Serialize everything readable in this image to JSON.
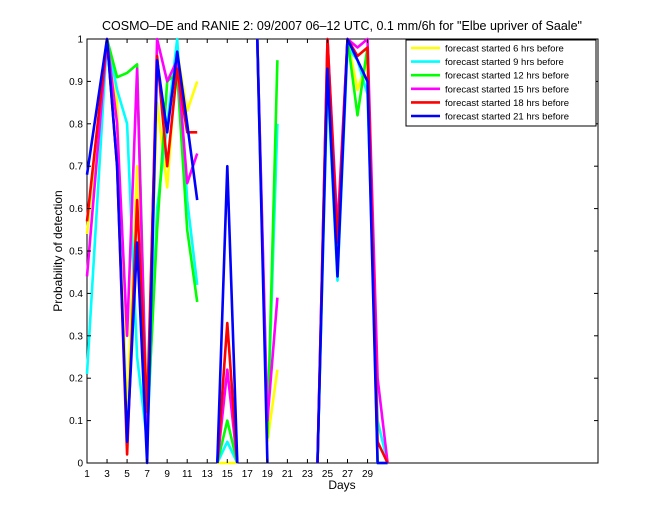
{
  "chart_data": {
    "type": "line",
    "title": "COSMO–DE and RANIE 2: 09/2007 06–12 UTC, 0.1 mm/6h for \"Elbe upriver of Saale\"",
    "xlabel": "Days",
    "ylabel": "Probability of detection",
    "xlim": [
      1,
      52
    ],
    "ylim": [
      0,
      1
    ],
    "x_ticks": [
      1,
      3,
      5,
      7,
      9,
      11,
      13,
      15,
      17,
      19,
      21,
      23,
      25,
      27,
      29
    ],
    "y_ticks": [
      0,
      0.1,
      0.2,
      0.3,
      0.4,
      0.5,
      0.6,
      0.7,
      0.8,
      0.9,
      1
    ],
    "grid": false,
    "legend_position": "top-right",
    "series": [
      {
        "name": "forecast started 6 hrs before",
        "color": "#ffff00",
        "points": [
          [
            1,
            0.54
          ],
          [
            3,
            1.0
          ],
          [
            4,
            0.85
          ],
          [
            5,
            0.1
          ],
          [
            6,
            0.7
          ],
          [
            7,
            0.1
          ],
          [
            8,
            0.85
          ],
          [
            9,
            0.65
          ],
          [
            10,
            0.97
          ],
          [
            11,
            0.83
          ],
          [
            12,
            0.9
          ],
          null,
          [
            14,
            0.0
          ],
          [
            15,
            0.0
          ],
          [
            16,
            0.0
          ],
          null,
          [
            18,
            0.98
          ],
          [
            19,
            0.05
          ],
          [
            20,
            0.22
          ],
          null,
          [
            24,
            0.0
          ],
          [
            25,
            0.95
          ],
          [
            26,
            0.5
          ],
          [
            27,
            1.0
          ],
          [
            28,
            0.88
          ],
          [
            29,
            0.95
          ],
          [
            30,
            0.0
          ],
          [
            31,
            0.0
          ]
        ]
      },
      {
        "name": "forecast started 9 hrs before",
        "color": "#00ffff",
        "points": [
          [
            1,
            0.21
          ],
          [
            3,
            1.0
          ],
          [
            4,
            0.88
          ],
          [
            5,
            0.8
          ],
          [
            6,
            0.25
          ],
          [
            7,
            0.05
          ],
          [
            8,
            0.6
          ],
          [
            9,
            0.8
          ],
          [
            10,
            1.0
          ],
          [
            11,
            0.62
          ],
          [
            12,
            0.42
          ],
          null,
          [
            14,
            0.0
          ],
          [
            15,
            0.05
          ],
          [
            16,
            0.0
          ],
          null,
          [
            18,
            1.0
          ],
          [
            19,
            0.08
          ],
          [
            20,
            0.8
          ],
          null,
          [
            24,
            0.0
          ],
          [
            25,
            0.9
          ],
          [
            26,
            0.43
          ],
          [
            27,
            0.98
          ],
          [
            28,
            0.95
          ],
          [
            29,
            0.87
          ],
          [
            30,
            0.1
          ],
          [
            31,
            0.0
          ]
        ]
      },
      {
        "name": "forecast started 12 hrs before",
        "color": "#00ff00",
        "points": [
          [
            3,
            1.0
          ],
          [
            4,
            0.91
          ],
          [
            5,
            0.92
          ],
          [
            6,
            0.94
          ],
          [
            7,
            0.08
          ],
          [
            8,
            0.55
          ],
          [
            9,
            0.9
          ],
          [
            10,
            0.92
          ],
          [
            11,
            0.55
          ],
          [
            12,
            0.38
          ],
          null,
          [
            14,
            0.0
          ],
          [
            15,
            0.1
          ],
          [
            16,
            0.0
          ],
          null,
          [
            18,
            1.0
          ],
          [
            19,
            0.06
          ],
          [
            20,
            0.95
          ],
          null,
          [
            24,
            0.0
          ],
          [
            25,
            0.95
          ],
          [
            26,
            0.5
          ],
          [
            27,
            1.0
          ],
          [
            28,
            0.82
          ],
          [
            29,
            0.98
          ],
          [
            30,
            0.0
          ],
          [
            31,
            0.0
          ]
        ]
      },
      {
        "name": "forecast started 15 hrs before",
        "color": "#ff00ff",
        "points": [
          [
            1,
            0.44
          ],
          [
            3,
            1.0
          ],
          [
            4,
            0.8
          ],
          [
            5,
            0.3
          ],
          [
            6,
            0.93
          ],
          [
            7,
            0.06
          ],
          [
            8,
            1.0
          ],
          [
            9,
            0.9
          ],
          [
            10,
            0.95
          ],
          [
            11,
            0.66
          ],
          [
            12,
            0.73
          ],
          null,
          [
            14,
            0.0
          ],
          [
            15,
            0.22
          ],
          [
            16,
            0.0
          ],
          null,
          [
            18,
            1.0
          ],
          [
            19,
            0.1
          ],
          [
            20,
            0.39
          ],
          null,
          [
            24,
            0.0
          ],
          [
            25,
            1.0
          ],
          [
            26,
            0.55
          ],
          [
            27,
            1.0
          ],
          [
            28,
            0.98
          ],
          [
            29,
            1.0
          ],
          [
            30,
            0.2
          ],
          [
            31,
            0.0
          ]
        ]
      },
      {
        "name": "forecast started 18 hrs before",
        "color": "#ff0000",
        "points": [
          [
            1,
            0.57
          ],
          [
            3,
            1.0
          ],
          [
            4,
            0.7
          ],
          [
            5,
            0.02
          ],
          [
            6,
            0.62
          ],
          [
            7,
            0.12
          ],
          [
            8,
            0.96
          ],
          [
            9,
            0.7
          ],
          [
            10,
            0.93
          ],
          [
            11,
            0.78
          ],
          [
            12,
            0.78
          ],
          null,
          [
            14,
            0.0
          ],
          [
            15,
            0.33
          ],
          [
            16,
            0.0
          ],
          null,
          [
            18,
            1.0
          ],
          null,
          [
            24,
            0.0
          ],
          [
            25,
            1.0
          ],
          [
            26,
            0.52
          ],
          [
            27,
            1.0
          ],
          [
            28,
            0.96
          ],
          [
            29,
            0.98
          ],
          [
            30,
            0.05
          ],
          [
            31,
            0.0
          ]
        ]
      },
      {
        "name": "forecast started 21 hrs before",
        "color": "#0000ff",
        "points": [
          [
            1,
            0.68
          ],
          [
            3,
            1.0
          ],
          [
            4,
            0.7
          ],
          [
            5,
            0.05
          ],
          [
            6,
            0.52
          ],
          [
            7,
            0.0
          ],
          [
            8,
            0.95
          ],
          [
            9,
            0.78
          ],
          [
            10,
            0.97
          ],
          [
            11,
            0.8
          ],
          [
            12,
            0.62
          ],
          null,
          [
            14,
            0.0
          ],
          [
            15,
            0.7
          ],
          [
            16,
            0.0
          ],
          null,
          [
            18,
            1.0
          ],
          [
            19,
            0.0
          ],
          null,
          [
            24,
            0.0
          ],
          [
            25,
            0.93
          ],
          [
            26,
            0.44
          ],
          [
            27,
            1.0
          ],
          [
            28,
            0.95
          ],
          [
            29,
            0.9
          ],
          [
            30,
            0.0
          ],
          [
            31,
            0.0
          ]
        ]
      }
    ]
  }
}
